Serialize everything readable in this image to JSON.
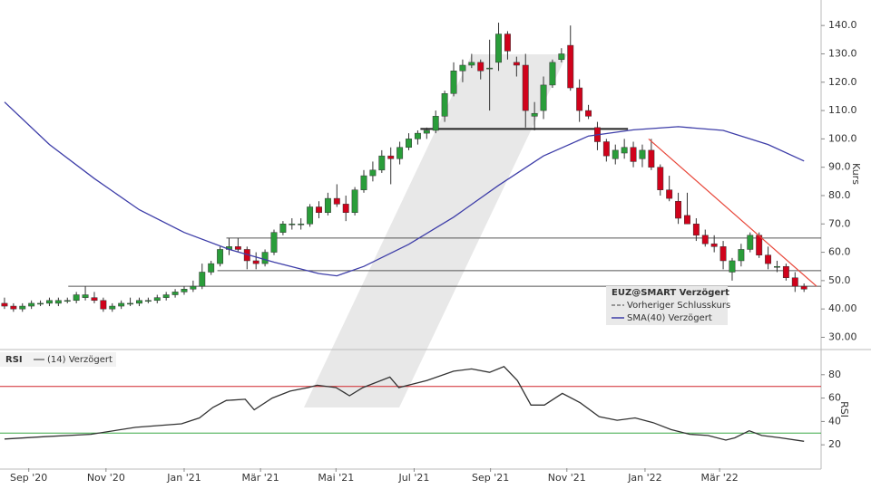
{
  "chart_data": [
    {
      "type": "candlestick",
      "y_label": "Kurs",
      "xlim": [
        -0.5,
        90.9
      ],
      "ylim": [
        26,
        149
      ],
      "yticks": [
        {
          "value": 30,
          "label": "30.00"
        },
        {
          "value": 40,
          "label": "40.00"
        },
        {
          "value": 50,
          "label": "50.0"
        },
        {
          "value": 60,
          "label": "60.0"
        },
        {
          "value": 70,
          "label": "70.0"
        },
        {
          "value": 80,
          "label": "80.0"
        },
        {
          "value": 90,
          "label": "90.0"
        },
        {
          "value": 100,
          "label": "100.0"
        },
        {
          "value": 110,
          "label": "110.0"
        },
        {
          "value": 120,
          "label": "120.0"
        },
        {
          "value": 130,
          "label": "130.0"
        },
        {
          "value": 140,
          "label": "140.0"
        }
      ],
      "up_color": "#2a9d3a",
      "down_color": "#d0021b",
      "candles": {
        "open": [
          42,
          41,
          40,
          41,
          42,
          42,
          42,
          43,
          43,
          44,
          44,
          43,
          40,
          41,
          42,
          42,
          43,
          43,
          44,
          45,
          46,
          47,
          48,
          53,
          56,
          61,
          62,
          61,
          57,
          56,
          60,
          67,
          70,
          70,
          70,
          76,
          74,
          79,
          77,
          74,
          82,
          87,
          89,
          94,
          93,
          97,
          100,
          102,
          103,
          108,
          116,
          124,
          126,
          127,
          125,
          127,
          137,
          127,
          126,
          108,
          110,
          119,
          128,
          133,
          118,
          110,
          104,
          99,
          93,
          95,
          97,
          93,
          96,
          90,
          82,
          78,
          73,
          70,
          66,
          63,
          62,
          53,
          57,
          61,
          66,
          59,
          55,
          55,
          51,
          48
        ],
        "high": [
          44,
          42,
          42,
          43,
          43,
          44,
          44,
          44,
          46,
          48,
          46,
          44,
          42,
          43,
          44,
          44,
          44,
          45,
          46,
          47,
          48,
          50,
          56,
          57,
          62,
          65,
          65,
          62,
          60,
          61,
          68,
          71,
          72,
          72,
          77,
          78,
          81,
          84,
          80,
          83,
          89,
          92,
          96,
          97,
          99,
          102,
          103,
          104,
          110,
          117,
          127,
          128,
          130,
          128,
          135,
          141,
          138,
          129,
          130,
          113,
          122,
          128,
          132,
          140,
          121,
          112,
          106,
          100,
          98,
          100,
          99,
          98,
          100,
          91,
          87,
          81,
          81,
          72,
          68,
          66,
          64,
          58,
          63,
          67,
          67,
          62,
          57,
          56,
          53,
          49
        ],
        "low": [
          40,
          39,
          39,
          40,
          41,
          41,
          41,
          42,
          42,
          43,
          42,
          39,
          39,
          40,
          41,
          41,
          42,
          42,
          43,
          44,
          45,
          46,
          47,
          52,
          55,
          59,
          60,
          54,
          54,
          55,
          59,
          66,
          68,
          68,
          69,
          72,
          73,
          76,
          71,
          73,
          81,
          85,
          88,
          84,
          91,
          96,
          98,
          100,
          102,
          106,
          115,
          120,
          125,
          121,
          110,
          124,
          128,
          122,
          104,
          103,
          107,
          118,
          127,
          117,
          106,
          107,
          96,
          92,
          91,
          93,
          90,
          90,
          89,
          80,
          78,
          70,
          70,
          64,
          62,
          60,
          54,
          50,
          55,
          60,
          58,
          54,
          53,
          50,
          46,
          46
        ],
        "close": [
          41,
          40,
          41,
          42,
          42,
          43,
          43,
          43,
          45,
          45,
          43,
          40,
          41,
          42,
          42,
          43,
          43,
          44,
          45,
          46,
          47,
          48,
          53,
          56,
          61,
          62,
          61,
          57,
          56,
          60,
          67,
          70,
          70,
          70,
          76,
          74,
          79,
          77,
          74,
          82,
          87,
          89,
          94,
          93,
          97,
          100,
          102,
          103,
          108,
          116,
          124,
          126,
          127,
          124,
          125,
          137,
          131,
          126,
          110,
          109,
          119,
          127,
          130,
          118,
          110,
          108,
          99,
          94,
          96,
          97,
          92,
          96,
          90,
          82,
          79,
          72,
          70,
          66,
          63,
          62,
          57,
          57,
          61,
          66,
          59,
          56,
          55,
          51,
          48,
          47
        ]
      },
      "series": [
        {
          "name": "SMA(40) Verzögert",
          "color": "#3d3da8",
          "x": [
            0,
            5,
            10,
            15,
            20,
            25,
            30,
            35,
            37,
            40,
            45,
            50,
            55,
            60,
            65,
            70,
            75,
            80,
            85,
            89
          ],
          "values": [
            113,
            98,
            86,
            75,
            67,
            61,
            56.5,
            52.5,
            51.7,
            55,
            62.8,
            72.4,
            83.6,
            94,
            101,
            103.2,
            104.3,
            103,
            98,
            92.2
          ]
        }
      ],
      "hlines": [
        {
          "value": 103.5,
          "from": 46.3,
          "to": 69.4,
          "color": "#222222",
          "width": 2
        },
        {
          "value": 65,
          "from": 24.7,
          "to": 90.9,
          "color": "#555555",
          "width": 1
        },
        {
          "value": 53.5,
          "from": 23.7,
          "to": 90.9,
          "color": "#555555",
          "width": 1
        },
        {
          "value": 48,
          "from": 7.1,
          "to": 90.9,
          "color": "#555555",
          "width": 1
        }
      ],
      "trendline": {
        "x": [
          71.7,
          90.4
        ],
        "values": [
          100,
          48
        ],
        "color": "#e8473a"
      },
      "legend_title": "EUZ@SMART Verzögert",
      "legend_entries": [
        {
          "name": "Vorheriger Schlusskurs",
          "color": "#444444"
        }
      ]
    },
    {
      "type": "line",
      "title": "RSI",
      "y_label": "RSI",
      "xlim": [
        -0.5,
        90.9
      ],
      "ylim": [
        0,
        100
      ],
      "yticks": [
        20,
        40,
        60,
        80
      ],
      "xticks": [
        {
          "value": 2.7,
          "label": "Sep '20"
        },
        {
          "value": 11.3,
          "label": "Nov '20"
        },
        {
          "value": 20,
          "label": "Jan '21"
        },
        {
          "value": 28.5,
          "label": "Mär '21"
        },
        {
          "value": 36.9,
          "label": "Mai '21"
        },
        {
          "value": 45.6,
          "label": "Jul '21"
        },
        {
          "value": 54.1,
          "label": "Sep '21"
        },
        {
          "value": 62.6,
          "label": "Nov '21"
        },
        {
          "value": 71.3,
          "label": "Jan '22"
        },
        {
          "value": 79.6,
          "label": "Mär '22"
        }
      ],
      "series": [
        {
          "name": "(14) Verzögert",
          "color": "#333333",
          "x": [
            0,
            4.5,
            9.6,
            14.6,
            19.7,
            21.7,
            23.2,
            24.7,
            26.8,
            27.8,
            29.8,
            31.8,
            33.8,
            34.8,
            36.9,
            38.4,
            39.9,
            42.9,
            43.9,
            47,
            50,
            52,
            54,
            55.6,
            57.1,
            58.6,
            60.1,
            62.1,
            64.1,
            66.2,
            68.2,
            70.2,
            72.2,
            74.2,
            76.3,
            78.3,
            80.3,
            81.3,
            82.9,
            84.3,
            86.4,
            89
          ],
          "values": [
            25,
            27,
            29,
            35,
            38,
            43,
            52,
            58,
            59,
            50,
            60,
            66,
            69,
            71,
            69,
            62,
            69,
            78,
            69,
            75,
            83,
            85,
            82,
            87,
            75,
            54,
            54,
            64,
            56,
            44,
            41,
            43,
            39,
            33,
            29,
            28,
            24,
            26,
            32,
            28,
            26,
            23
          ]
        }
      ],
      "hlines": [
        {
          "value": 70,
          "from": -0.5,
          "to": 90.9,
          "color": "#d0262b",
          "width": 1
        },
        {
          "value": 30,
          "from": -0.5,
          "to": 90.9,
          "color": "#3aa845",
          "width": 1
        }
      ]
    }
  ]
}
